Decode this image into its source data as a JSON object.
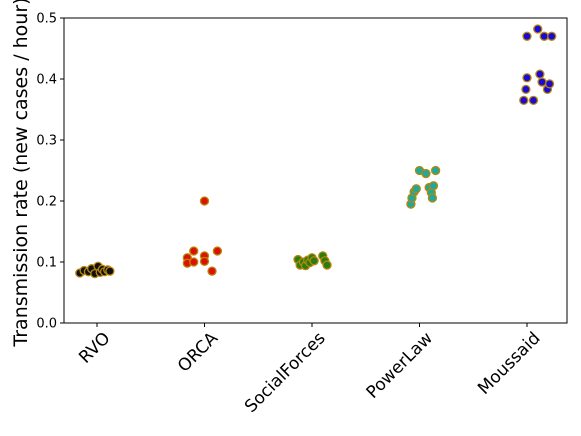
{
  "chart_data": {
    "type": "scatter",
    "subtype": "strip",
    "title": "",
    "xlabel": "",
    "ylabel": "Transmission rate (new cases / hour)",
    "ylim": [
      0.0,
      0.5
    ],
    "yticks": [
      "0.0",
      "0.1",
      "0.2",
      "0.3",
      "0.4",
      "0.5"
    ],
    "grid": false,
    "legend": "none",
    "categories": [
      "RVO",
      "ORCA",
      "SocialForces",
      "PowerLaw",
      "Moussaid"
    ],
    "series": [
      {
        "category": "RVO",
        "fill": "#111111",
        "edge": "#b8860b",
        "points": [
          {
            "jitter": -0.16,
            "value": 0.082
          },
          {
            "jitter": -0.12,
            "value": 0.086
          },
          {
            "jitter": -0.08,
            "value": 0.084
          },
          {
            "jitter": -0.05,
            "value": 0.089
          },
          {
            "jitter": -0.02,
            "value": 0.081
          },
          {
            "jitter": 0.01,
            "value": 0.093
          },
          {
            "jitter": 0.03,
            "value": 0.083
          },
          {
            "jitter": 0.05,
            "value": 0.088
          },
          {
            "jitter": 0.07,
            "value": 0.084
          },
          {
            "jitter": 0.1,
            "value": 0.087
          },
          {
            "jitter": 0.12,
            "value": 0.085
          }
        ]
      },
      {
        "category": "ORCA",
        "fill": "#dd1100",
        "edge": "#b8860b",
        "points": [
          {
            "jitter": -0.16,
            "value": 0.107
          },
          {
            "jitter": -0.16,
            "value": 0.098
          },
          {
            "jitter": -0.1,
            "value": 0.118
          },
          {
            "jitter": -0.1,
            "value": 0.1
          },
          {
            "jitter": 0.0,
            "value": 0.2
          },
          {
            "jitter": 0.0,
            "value": 0.11
          },
          {
            "jitter": 0.0,
            "value": 0.101
          },
          {
            "jitter": 0.07,
            "value": 0.085
          },
          {
            "jitter": 0.12,
            "value": 0.118
          }
        ]
      },
      {
        "category": "SocialForces",
        "fill": "#2a7d0f",
        "edge": "#b8860b",
        "points": [
          {
            "jitter": -0.13,
            "value": 0.104
          },
          {
            "jitter": -0.11,
            "value": 0.095
          },
          {
            "jitter": -0.08,
            "value": 0.1
          },
          {
            "jitter": -0.06,
            "value": 0.094
          },
          {
            "jitter": -0.04,
            "value": 0.103
          },
          {
            "jitter": -0.02,
            "value": 0.099
          },
          {
            "jitter": 0.0,
            "value": 0.107
          },
          {
            "jitter": 0.02,
            "value": 0.102
          },
          {
            "jitter": 0.1,
            "value": 0.11
          },
          {
            "jitter": 0.12,
            "value": 0.102
          },
          {
            "jitter": 0.14,
            "value": 0.095
          }
        ]
      },
      {
        "category": "PowerLaw",
        "fill": "#1fa99a",
        "edge": "#b8860b",
        "points": [
          {
            "jitter": -0.08,
            "value": 0.195
          },
          {
            "jitter": -0.07,
            "value": 0.205
          },
          {
            "jitter": -0.05,
            "value": 0.215
          },
          {
            "jitter": -0.03,
            "value": 0.22
          },
          {
            "jitter": 0.0,
            "value": 0.25
          },
          {
            "jitter": 0.06,
            "value": 0.245
          },
          {
            "jitter": 0.09,
            "value": 0.222
          },
          {
            "jitter": 0.11,
            "value": 0.214
          },
          {
            "jitter": 0.12,
            "value": 0.205
          },
          {
            "jitter": 0.13,
            "value": 0.225
          },
          {
            "jitter": 0.15,
            "value": 0.25
          }
        ]
      },
      {
        "category": "Moussaid",
        "fill": "#1a0ad6",
        "edge": "#b8860b",
        "points": [
          {
            "jitter": -0.03,
            "value": 0.365
          },
          {
            "jitter": -0.01,
            "value": 0.383
          },
          {
            "jitter": 0.0,
            "value": 0.402
          },
          {
            "jitter": 0.0,
            "value": 0.47
          },
          {
            "jitter": 0.06,
            "value": 0.365
          },
          {
            "jitter": 0.1,
            "value": 0.482
          },
          {
            "jitter": 0.12,
            "value": 0.408
          },
          {
            "jitter": 0.14,
            "value": 0.395
          },
          {
            "jitter": 0.16,
            "value": 0.47
          },
          {
            "jitter": 0.19,
            "value": 0.383
          },
          {
            "jitter": 0.21,
            "value": 0.392
          },
          {
            "jitter": 0.23,
            "value": 0.47
          }
        ]
      }
    ]
  }
}
